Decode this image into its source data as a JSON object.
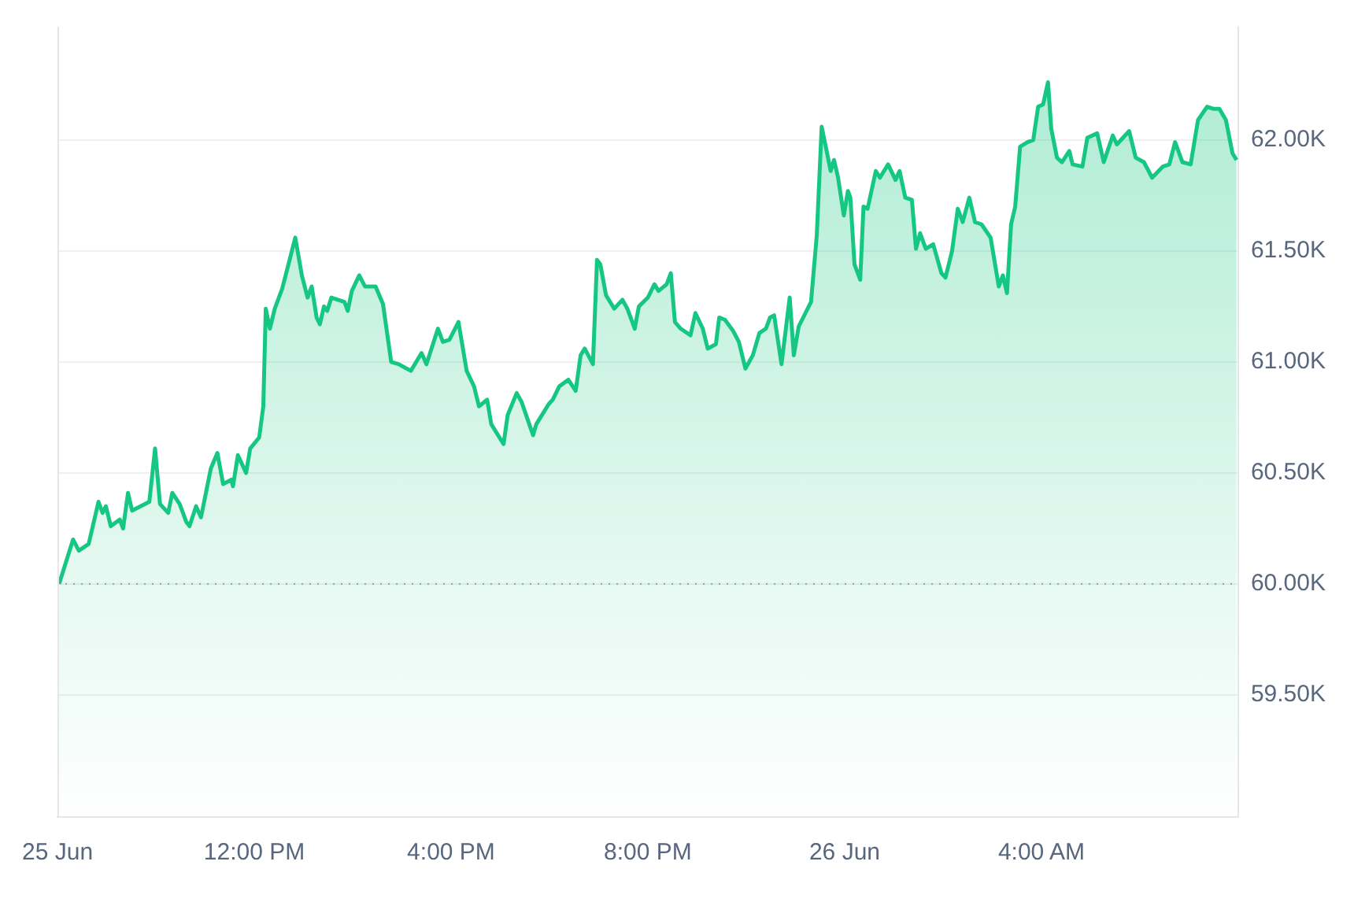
{
  "chart_data": {
    "type": "area",
    "marker": "none",
    "line_style": "solid",
    "grid": "y",
    "legend": false,
    "xlim": [
      "--06-25T08:00",
      "--06-26T08:00"
    ],
    "ylim": [
      58950,
      62510
    ],
    "xticks": [
      {
        "value": "--06-25T08:00",
        "label": "25 Jun"
      },
      {
        "value": "--06-25T12:00",
        "label": "12:00 PM"
      },
      {
        "value": "--06-25T16:00",
        "label": "4:00 PM"
      },
      {
        "value": "--06-25T20:00",
        "label": "8:00 PM"
      },
      {
        "value": "--06-26T00:00",
        "label": "26 Jun"
      },
      {
        "value": "--06-26T04:00",
        "label": "4:00 AM"
      }
    ],
    "yticks": [
      {
        "value": 59500,
        "label": "59.50K"
      },
      {
        "value": 60000,
        "label": "60.00K"
      },
      {
        "value": 60500,
        "label": "60.50K"
      },
      {
        "value": 61000,
        "label": "61.00K"
      },
      {
        "value": 61500,
        "label": "61.50K"
      },
      {
        "value": 62000,
        "label": "62.00K"
      }
    ],
    "ref_lines": [
      {
        "axis": "y",
        "value": 60000,
        "color": "#a0a4ad",
        "line_style": "dotted"
      }
    ],
    "series": [
      {
        "color": "#16c784",
        "x": [
          "--06-25T08:02",
          "--06-25T08:19",
          "--06-25T08:26",
          "--06-25T08:38",
          "--06-25T08:50",
          "--06-25T08:55",
          "--06-25T08:59",
          "--06-25T09:05",
          "--06-25T09:16",
          "--06-25T09:20",
          "--06-25T09:26",
          "--06-25T09:31",
          "--06-25T09:52",
          "--06-25T09:59",
          "--06-25T10:05",
          "--06-25T10:15",
          "--06-25T10:20",
          "--06-25T10:29",
          "--06-25T10:37",
          "--06-25T10:41",
          "--06-25T10:49",
          "--06-25T10:55",
          "--06-25T11:07",
          "--06-25T11:15",
          "--06-25T11:22",
          "--06-25T11:32",
          "--06-25T11:34",
          "--06-25T11:40",
          "--06-25T11:50",
          "--06-25T11:55",
          "--06-25T12:06",
          "--06-25T12:11",
          "--06-25T12:14",
          "--06-25T12:19",
          "--06-25T12:25",
          "--06-25T12:34",
          "--06-25T12:41",
          "--06-25T12:50",
          "--06-25T12:58",
          "--06-25T13:05",
          "--06-25T13:10",
          "--06-25T13:16",
          "--06-25T13:20",
          "--06-25T13:25",
          "--06-25T13:29",
          "--06-25T13:34",
          "--06-25T13:50",
          "--06-25T13:54",
          "--06-25T13:59",
          "--06-25T14:08",
          "--06-25T14:15",
          "--06-25T14:28",
          "--06-25T14:37",
          "--06-25T14:47",
          "--06-25T14:56",
          "--06-25T15:11",
          "--06-25T15:24",
          "--06-25T15:30",
          "--06-25T15:44",
          "--06-25T15:50",
          "--06-25T15:58",
          "--06-25T16:09",
          "--06-25T16:19",
          "--06-25T16:28",
          "--06-25T16:34",
          "--06-25T16:44",
          "--06-25T16:49",
          "--06-25T17:04",
          "--06-25T17:09",
          "--06-25T17:20",
          "--06-25T17:26",
          "--06-25T17:40",
          "--06-25T17:44",
          "--06-25T17:59",
          "--06-25T18:04",
          "--06-25T18:12",
          "--06-25T18:23",
          "--06-25T18:32",
          "--06-25T18:38",
          "--06-25T18:43",
          "--06-25T18:53",
          "--06-25T18:58",
          "--06-25T19:02",
          "--06-25T19:09",
          "--06-25T19:19",
          "--06-25T19:29",
          "--06-25T19:35",
          "--06-25T19:44",
          "--06-25T19:49",
          "--06-25T20:00",
          "--06-25T20:08",
          "--06-25T20:13",
          "--06-25T20:23",
          "--06-25T20:28",
          "--06-25T20:33",
          "--06-25T20:40",
          "--06-25T20:52",
          "--06-25T20:58",
          "--06-25T21:07",
          "--06-25T21:13",
          "--06-25T21:23",
          "--06-25T21:27",
          "--06-25T21:34",
          "--06-25T21:44",
          "--06-25T21:51",
          "--06-25T21:59",
          "--06-25T22:08",
          "--06-25T22:16",
          "--06-25T22:24",
          "--06-25T22:29",
          "--06-25T22:34",
          "--06-25T22:43",
          "--06-25T22:53",
          "--06-25T22:58",
          "--06-25T23:04",
          "--06-25T23:19",
          "--06-25T23:26",
          "--06-25T23:32",
          "--06-25T23:43",
          "--06-25T23:47",
          "--06-25T23:52",
          "--06-25T23:59",
          "--06-26T00:04",
          "--06-26T00:07",
          "--06-26T00:12",
          "--06-26T00:19",
          "--06-26T00:23",
          "--06-26T00:28",
          "--06-26T00:38",
          "--06-26T00:43",
          "--06-26T00:53",
          "--06-26T01:02",
          "--06-26T01:07",
          "--06-26T01:14",
          "--06-26T01:22",
          "--06-26T01:27",
          "--06-26T01:32",
          "--06-26T01:39",
          "--06-26T01:48",
          "--06-26T01:58",
          "--06-26T02:03",
          "--06-26T02:11",
          "--06-26T02:18",
          "--06-26T02:24",
          "--06-26T02:32",
          "--06-26T02:39",
          "--06-26T02:47",
          "--06-26T02:58",
          "--06-26T03:08",
          "--06-26T03:13",
          "--06-26T03:18",
          "--06-26T03:23",
          "--06-26T03:28",
          "--06-26T03:34",
          "--06-26T03:43",
          "--06-26T03:50",
          "--06-26T03:56",
          "--06-26T04:02",
          "--06-26T04:08",
          "--06-26T04:12",
          "--06-26T04:19",
          "--06-26T04:25",
          "--06-26T04:34",
          "--06-26T04:38",
          "--06-26T04:50",
          "--06-26T04:56",
          "--06-26T05:08",
          "--06-26T05:16",
          "--06-26T05:27",
          "--06-26T05:32",
          "--06-26T05:47",
          "--06-26T05:55",
          "--06-26T06:05",
          "--06-26T06:15",
          "--06-26T06:28",
          "--06-26T06:36",
          "--06-26T06:43",
          "--06-26T06:52",
          "--06-26T07:02",
          "--06-26T07:11",
          "--06-26T07:22",
          "--06-26T07:30",
          "--06-26T07:37",
          "--06-26T07:45",
          "--06-26T07:53",
          "--06-26T07:58"
        ],
        "values": [
          60000,
          60200,
          60150,
          60180,
          60370,
          60320,
          60350,
          60260,
          60290,
          60250,
          60410,
          60330,
          60370,
          60610,
          60360,
          60320,
          60410,
          60360,
          60280,
          60260,
          60350,
          60300,
          60520,
          60590,
          60450,
          60470,
          60440,
          60580,
          60500,
          60610,
          60660,
          60800,
          61240,
          61150,
          61240,
          61330,
          61430,
          61560,
          61390,
          61290,
          61340,
          61200,
          61170,
          61250,
          61230,
          61290,
          61270,
          61230,
          61320,
          61390,
          61340,
          61340,
          61260,
          61000,
          60990,
          60960,
          61040,
          60990,
          61150,
          61090,
          61100,
          61180,
          60960,
          60890,
          60800,
          60830,
          60720,
          60630,
          60760,
          60860,
          60820,
          60670,
          60720,
          60810,
          60830,
          60890,
          60920,
          60870,
          61030,
          61060,
          60990,
          61460,
          61440,
          61300,
          61240,
          61280,
          61240,
          61150,
          61250,
          61290,
          61350,
          61320,
          61350,
          61400,
          61180,
          61150,
          61120,
          61220,
          61150,
          61060,
          61080,
          61200,
          61190,
          61140,
          61090,
          60970,
          61030,
          61130,
          61150,
          61200,
          61210,
          60990,
          61290,
          61030,
          61160,
          61270,
          61570,
          62060,
          61860,
          61910,
          61830,
          61660,
          61770,
          61740,
          61440,
          61370,
          61700,
          61690,
          61860,
          61830,
          61890,
          61820,
          61860,
          61740,
          61730,
          61510,
          61580,
          61510,
          61530,
          61400,
          61380,
          61500,
          61690,
          61630,
          61740,
          61630,
          61620,
          61560,
          61340,
          61390,
          61310,
          61620,
          61700,
          61970,
          61990,
          62000,
          62150,
          62160,
          62260,
          62050,
          61920,
          61900,
          61950,
          61890,
          61880,
          62010,
          62030,
          61900,
          62020,
          61980,
          62040,
          61920,
          61900,
          61830,
          61880,
          61890,
          61990,
          61900,
          61890,
          62090,
          62150,
          62140,
          62140,
          62090,
          61940,
          61910
        ]
      }
    ]
  }
}
